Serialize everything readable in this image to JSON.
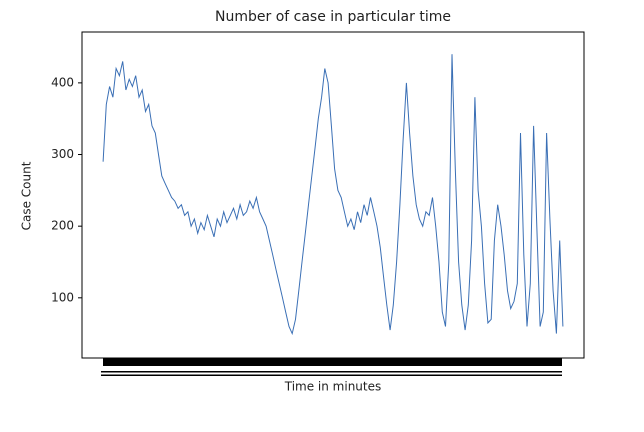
{
  "chart_data": {
    "type": "line",
    "title": "Number of case in particular time",
    "xlabel": "Time in minutes",
    "ylabel": "Case Count",
    "color": "#3a6fb5",
    "values": [
      290,
      370,
      395,
      380,
      420,
      410,
      430,
      390,
      405,
      395,
      410,
      380,
      390,
      360,
      370,
      340,
      330,
      300,
      270,
      260,
      250,
      240,
      235,
      225,
      230,
      215,
      220,
      200,
      210,
      190,
      205,
      195,
      215,
      200,
      185,
      210,
      200,
      220,
      205,
      215,
      225,
      210,
      230,
      215,
      220,
      235,
      225,
      240,
      220,
      210,
      200,
      180,
      160,
      140,
      120,
      100,
      80,
      60,
      50,
      70,
      110,
      150,
      190,
      230,
      270,
      310,
      350,
      380,
      420,
      400,
      340,
      280,
      250,
      240,
      220,
      200,
      210,
      195,
      220,
      205,
      230,
      215,
      240,
      220,
      200,
      170,
      130,
      90,
      55,
      90,
      150,
      230,
      320,
      400,
      330,
      270,
      230,
      210,
      200,
      220,
      215,
      240,
      200,
      150,
      80,
      60,
      150,
      440,
      280,
      150,
      90,
      55,
      90,
      180,
      380,
      250,
      200,
      120,
      65,
      70,
      180,
      230,
      200,
      160,
      110,
      85,
      95,
      120,
      330,
      160,
      60,
      120,
      340,
      200,
      60,
      80,
      330,
      210,
      110,
      50,
      180,
      60
    ],
    "ylim": [
      16,
      471
    ],
    "yticks": [
      100,
      200,
      300,
      400
    ]
  }
}
